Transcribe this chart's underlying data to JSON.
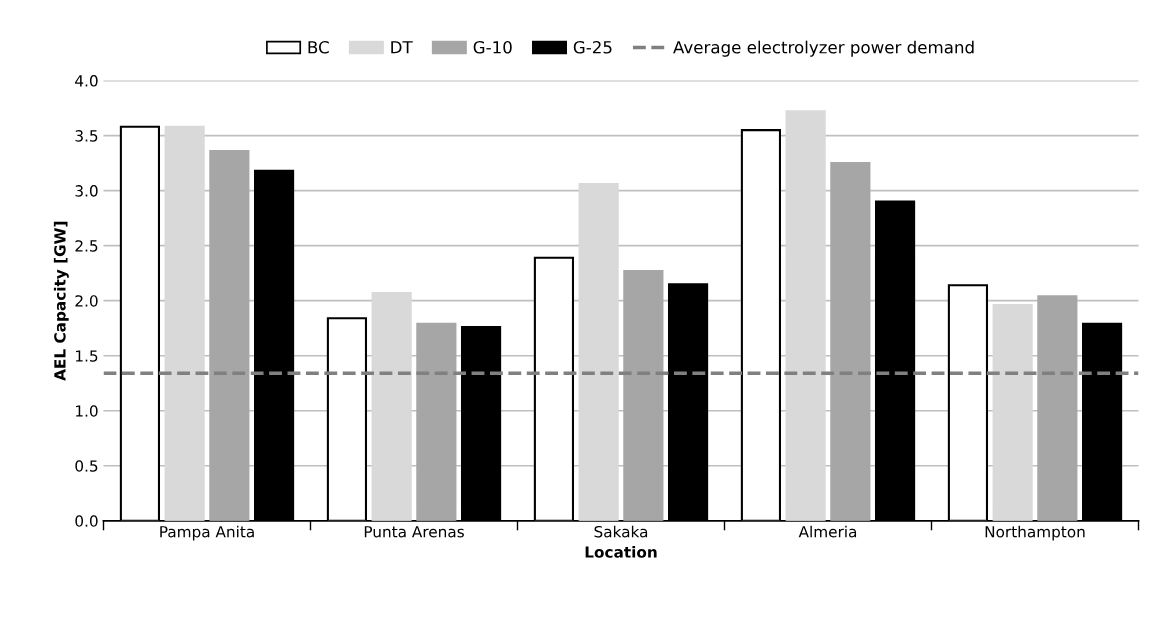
{
  "chart_data": {
    "type": "bar",
    "xlabel": "Location",
    "ylabel": "AEL Capacity [GW]",
    "categories": [
      "Pampa Anita",
      "Punta Arenas",
      "Sakaka",
      "Almeria",
      "Northampton"
    ],
    "series": [
      {
        "name": "BC",
        "color": "#ffffff",
        "values": [
          3.58,
          1.84,
          2.39,
          3.55,
          2.14
        ]
      },
      {
        "name": "DT",
        "color": "#d9d9d9",
        "values": [
          3.58,
          2.07,
          3.06,
          3.72,
          1.96
        ]
      },
      {
        "name": "G-10",
        "color": "#a6a6a6",
        "values": [
          3.36,
          1.79,
          2.27,
          3.25,
          2.04
        ]
      },
      {
        "name": "G-25",
        "color": "#000000",
        "values": [
          3.18,
          1.76,
          2.15,
          2.9,
          1.79
        ]
      }
    ],
    "ref_lines": [
      {
        "axis": "y",
        "value": 1.34,
        "label": "Average electrolyzer power demand",
        "color": "#808080",
        "line_style": "dashed"
      }
    ],
    "ylim": [
      0,
      4.0
    ],
    "yticks": [
      {
        "value": 0,
        "label": "0.0"
      },
      0.5,
      {
        "value": 1,
        "label": "1.0"
      },
      1.5,
      {
        "value": 2,
        "label": "2.0"
      },
      2.5,
      {
        "value": 3,
        "label": "3.0"
      },
      3.5,
      {
        "value": 4,
        "label": "4.0"
      }
    ],
    "grid": "y",
    "legend": "top"
  }
}
